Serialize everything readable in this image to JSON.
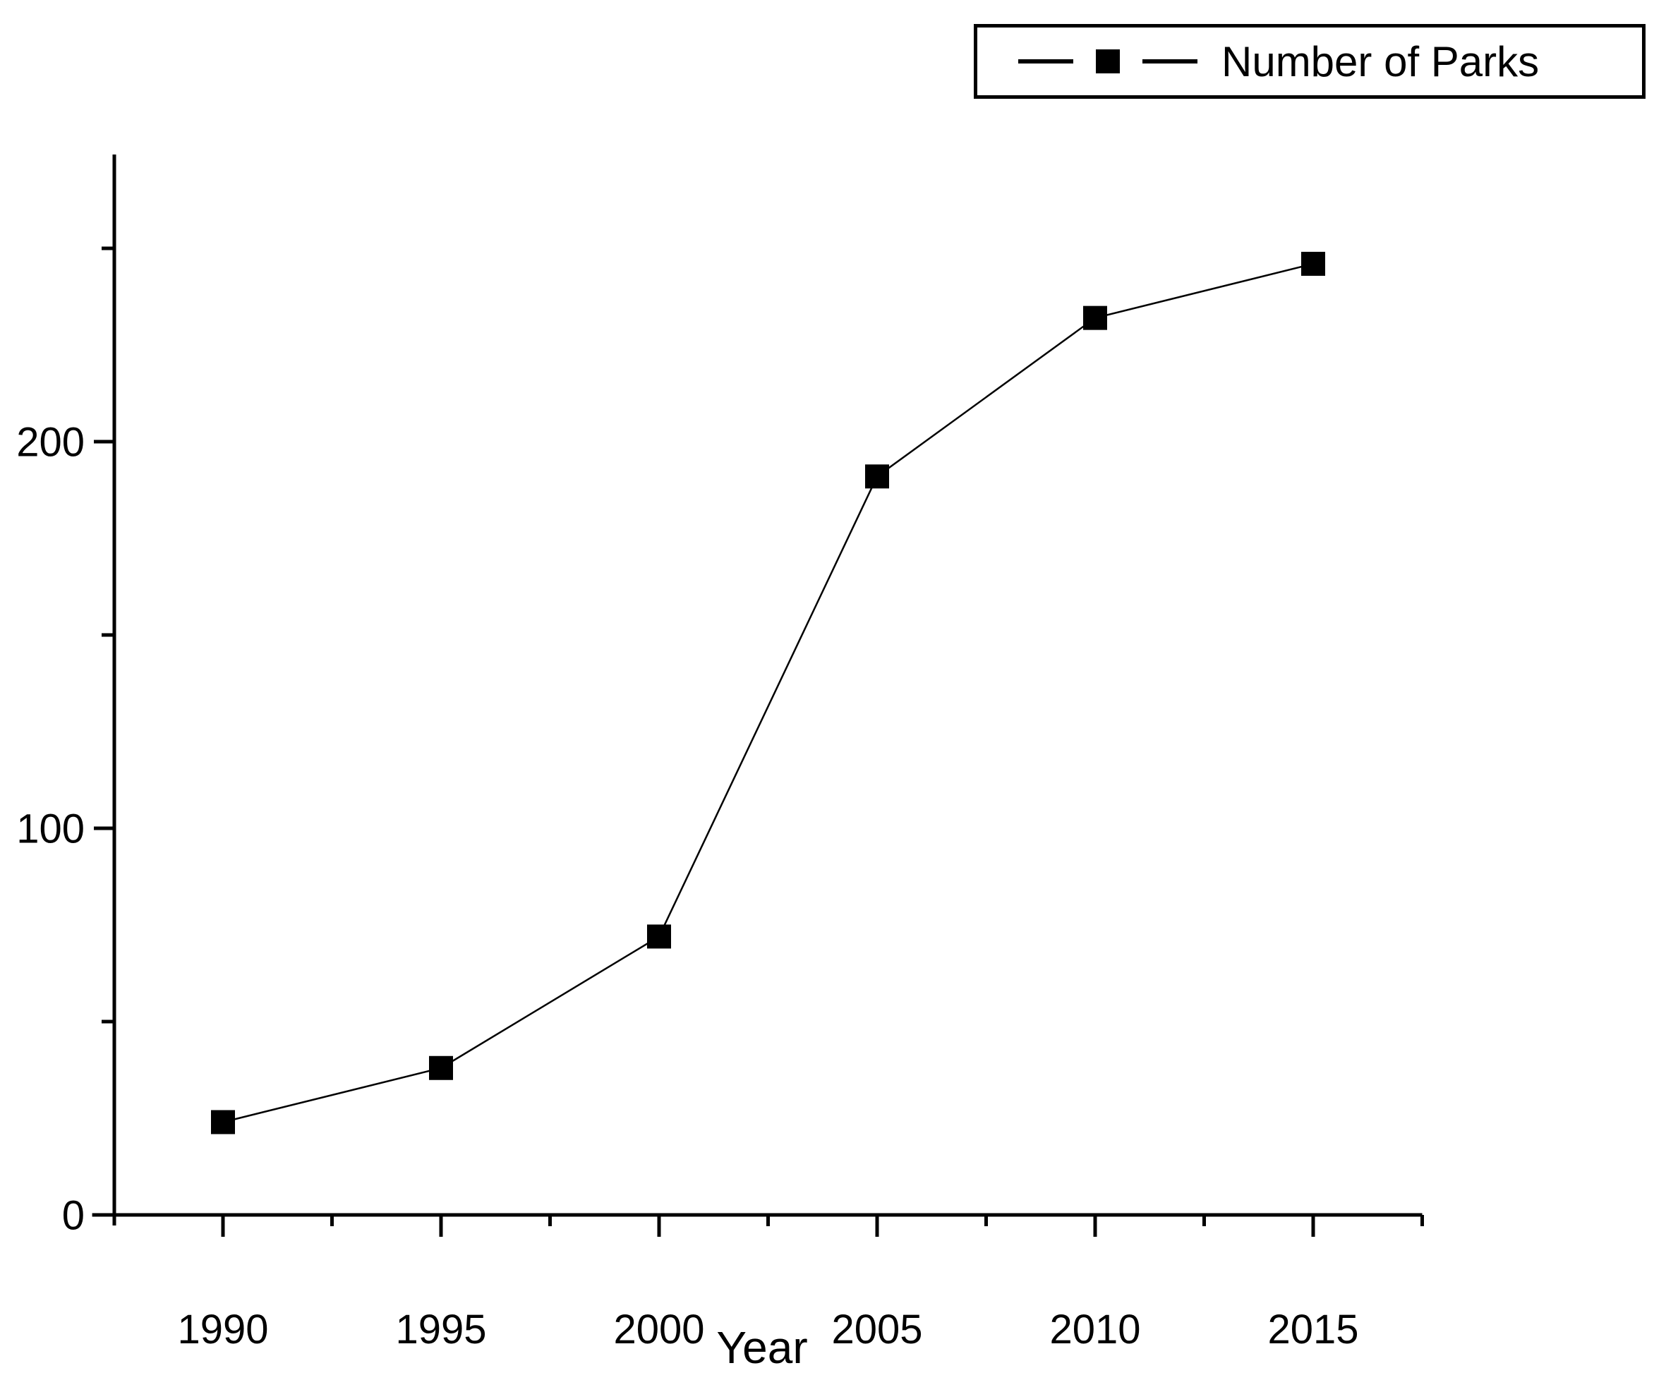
{
  "figure": {
    "background": "#ffffff",
    "axis_color": "#000000",
    "text_color": "#000000"
  },
  "legend": {
    "marker": "filled-square-with-line",
    "position": "top-right"
  },
  "chart_data": {
    "type": "line",
    "title": "",
    "xlabel": "Year",
    "ylabel": "",
    "x": [
      1990,
      1995,
      2000,
      2005,
      2010,
      2015
    ],
    "series": [
      {
        "name": "Number of Parks",
        "values": [
          24,
          38,
          72,
          191,
          232,
          246
        ],
        "color": "#000000",
        "marker": "square"
      }
    ],
    "xlim": [
      1987.0,
      2017.5
    ],
    "ylim": [
      0,
      274
    ],
    "xticks_major": [
      1990,
      1995,
      2000,
      2005,
      2010,
      2015
    ],
    "xtick_labels": [
      "1990",
      "1995",
      "2000",
      "2005",
      "2010",
      "2015"
    ],
    "xticks_minor": [
      1992.5,
      1997.5,
      2002.5,
      2007.5,
      2012.5,
      2017.5
    ],
    "yticks_major": [
      0,
      100,
      200
    ],
    "ytick_labels": [
      "0",
      "100",
      "200"
    ],
    "yticks_minor": [
      50,
      150,
      250
    ],
    "grid": false,
    "legend_position": "top-right"
  }
}
